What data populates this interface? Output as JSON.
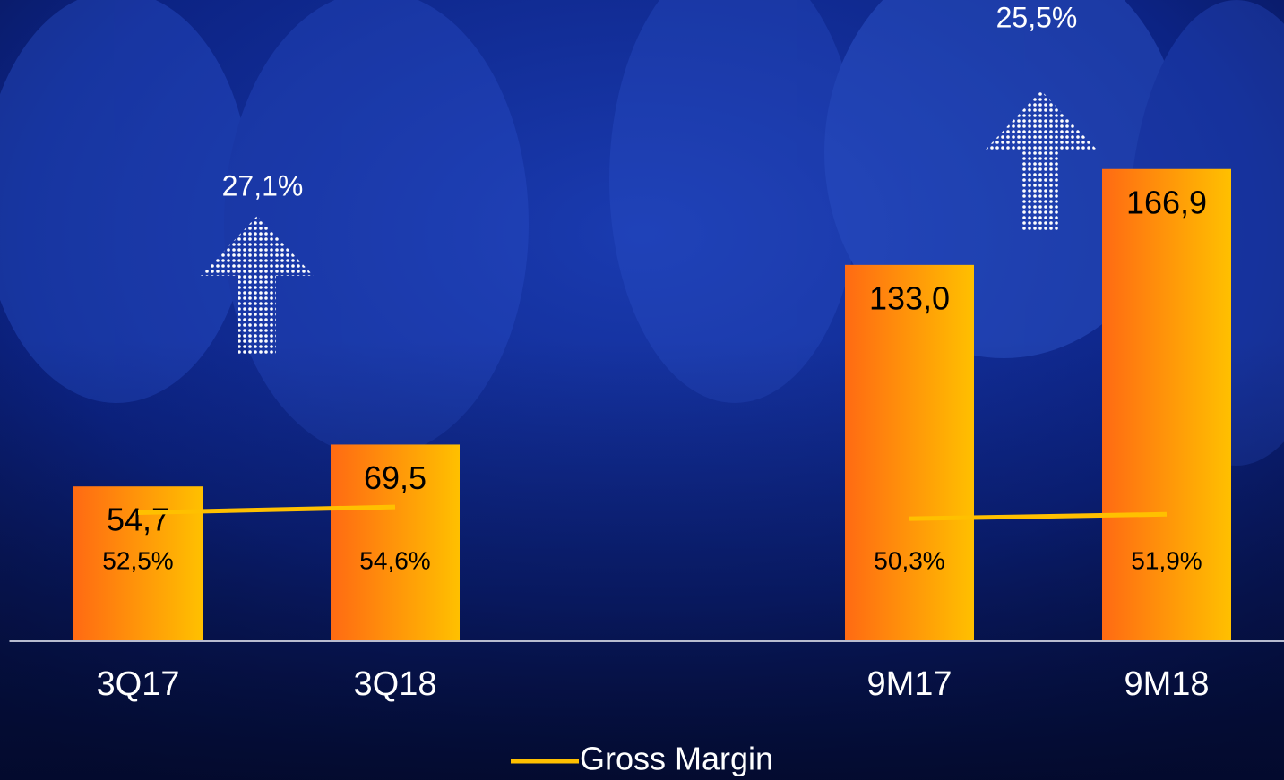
{
  "chart_data": {
    "type": "bar",
    "categories": [
      "3Q17",
      "3Q18",
      null,
      "9M17",
      "9M18"
    ],
    "ylim": [
      0,
      220
    ],
    "y2lim": [
      5,
      235
    ],
    "series": [
      {
        "values": [
          54.7,
          69.5,
          null,
          133.0,
          166.9
        ],
        "value_labels": [
          "54,7",
          "69,5",
          null,
          "133,0",
          "166,9"
        ],
        "gradient": [
          "#ff6a13",
          "#ffc000"
        ]
      },
      {
        "name": "Gross Margin",
        "type": "line",
        "axis": "y2",
        "color": "#ffc000",
        "values": [
          52.5,
          54.6,
          null,
          50.3,
          51.9
        ],
        "value_labels": [
          "52,5%",
          "54,6%",
          null,
          "50,3%",
          "51,9%"
        ]
      }
    ],
    "annotations": [
      "27,1%",
      "25,5%"
    ]
  }
}
